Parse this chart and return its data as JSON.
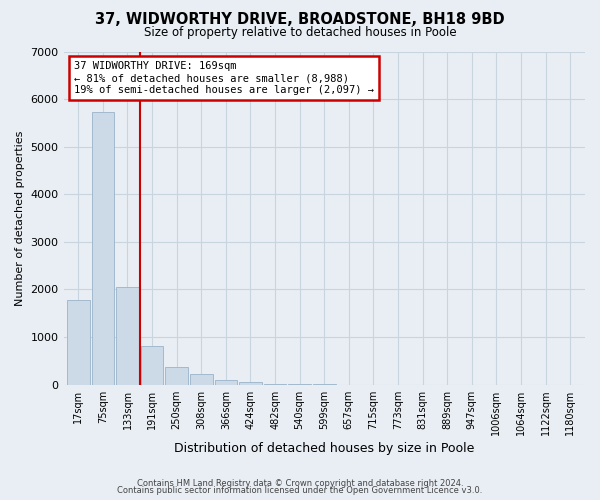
{
  "title": "37, WIDWORTHY DRIVE, BROADSTONE, BH18 9BD",
  "subtitle": "Size of property relative to detached houses in Poole",
  "xlabel": "Distribution of detached houses by size in Poole",
  "ylabel": "Number of detached properties",
  "bar_labels": [
    "17sqm",
    "75sqm",
    "133sqm",
    "191sqm",
    "250sqm",
    "308sqm",
    "366sqm",
    "424sqm",
    "482sqm",
    "540sqm",
    "599sqm",
    "657sqm",
    "715sqm",
    "773sqm",
    "831sqm",
    "889sqm",
    "947sqm",
    "1006sqm",
    "1064sqm",
    "1122sqm",
    "1180sqm"
  ],
  "bar_values": [
    1780,
    5720,
    2050,
    820,
    370,
    220,
    105,
    50,
    25,
    12,
    6,
    2,
    1,
    0,
    0,
    0,
    0,
    0,
    0,
    0,
    0
  ],
  "bar_color": "#ccdae8",
  "bar_edge_color": "#9ab4ca",
  "vline_color": "#cc0000",
  "vline_x_index": 2.5,
  "annotation_line1": "37 WIDWORTHY DRIVE: 169sqm",
  "annotation_line2": "← 81% of detached houses are smaller (8,988)",
  "annotation_line3": "19% of semi-detached houses are larger (2,097) →",
  "annotation_box_color": "#ffffff",
  "annotation_box_edge": "#cc0000",
  "ylim": [
    0,
    7000
  ],
  "yticks": [
    0,
    1000,
    2000,
    3000,
    4000,
    5000,
    6000,
    7000
  ],
  "grid_color": "#c8d4de",
  "background_color": "#e8eef4",
  "footer_line1": "Contains HM Land Registry data © Crown copyright and database right 2024.",
  "footer_line2": "Contains public sector information licensed under the Open Government Licence v3.0."
}
